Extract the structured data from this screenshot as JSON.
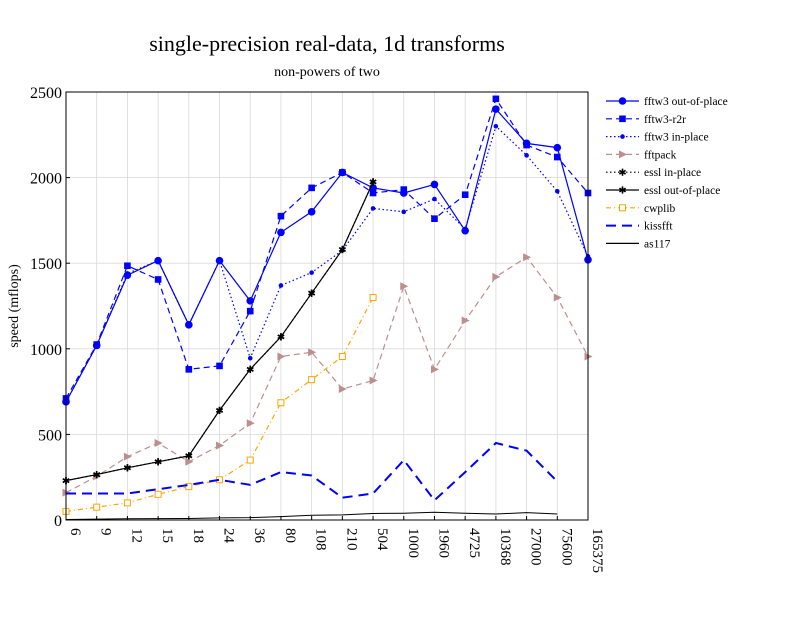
{
  "chart_data": {
    "type": "line",
    "title": "single-precision real-data, 1d transforms",
    "subtitle": "non-powers of two",
    "xlabel": "",
    "ylabel": "speed (mflops)",
    "ylim": [
      0,
      2500
    ],
    "yticks": [
      0,
      500,
      1000,
      1500,
      2000,
      2500
    ],
    "grid": true,
    "legend_position": "right",
    "categories": [
      "6",
      "9",
      "12",
      "15",
      "18",
      "24",
      "36",
      "80",
      "108",
      "210",
      "504",
      "1000",
      "1960",
      "4725",
      "10368",
      "27000",
      "75600",
      "165375"
    ],
    "series": [
      {
        "name": "fftw3 out-of-place",
        "color": "#0000ff",
        "dash": "solid",
        "marker": "circle",
        "values": [
          690,
          1020,
          1430,
          1515,
          1140,
          1515,
          1280,
          1680,
          1800,
          2030,
          1940,
          1910,
          1960,
          1690,
          2400,
          2200,
          2175,
          1520
        ]
      },
      {
        "name": "fftw3-r2r",
        "color": "#0000ff",
        "dash": "dashed",
        "marker": "square",
        "values": [
          710,
          1025,
          1485,
          1405,
          880,
          900,
          1220,
          1775,
          1940,
          2030,
          1910,
          1930,
          1760,
          1900,
          2460,
          2190,
          2120,
          1910
        ]
      },
      {
        "name": "fftw3 in-place",
        "color": "#0000ff",
        "dash": "dotted",
        "marker": "dot",
        "values": [
          690,
          1020,
          1440,
          1515,
          1140,
          1515,
          945,
          1370,
          1445,
          1575,
          1820,
          1800,
          1875,
          1700,
          2300,
          2130,
          1920,
          1540
        ]
      },
      {
        "name": "fftpack",
        "color": "#bc8f8f",
        "dash": "dashed",
        "marker": "triangle",
        "values": [
          160,
          255,
          370,
          450,
          340,
          435,
          565,
          955,
          980,
          765,
          815,
          1365,
          880,
          1165,
          1420,
          1535,
          1300,
          955
        ]
      },
      {
        "name": "essl in-place",
        "color": "#000000",
        "dash": "dotted",
        "marker": "star",
        "values": [
          230,
          265,
          305,
          340,
          375,
          640,
          880,
          1070,
          1325,
          1580,
          1975,
          null,
          null,
          null,
          null,
          null,
          null,
          null
        ]
      },
      {
        "name": "essl out-of-place",
        "color": "#000000",
        "dash": "solid",
        "marker": "star",
        "values": [
          230,
          265,
          305,
          340,
          375,
          640,
          880,
          1070,
          1325,
          1580,
          1975,
          null,
          null,
          null,
          null,
          null,
          null,
          null
        ]
      },
      {
        "name": "cwplib",
        "color": "#ffa500",
        "dash": "dashdot",
        "marker": "opensquare",
        "values": [
          50,
          75,
          100,
          150,
          195,
          235,
          350,
          685,
          820,
          955,
          1300,
          null,
          null,
          null,
          null,
          null,
          null,
          null
        ]
      },
      {
        "name": "kissfft",
        "color": "#0000ff",
        "dash": "longdash",
        "marker": "none",
        "values": [
          155,
          155,
          155,
          180,
          205,
          235,
          205,
          280,
          260,
          130,
          155,
          350,
          115,
          280,
          450,
          405,
          225,
          null
        ]
      },
      {
        "name": "as117",
        "color": "#000000",
        "dash": "solid",
        "marker": "none",
        "values": [
          3,
          5,
          7,
          8,
          9,
          12,
          14,
          20,
          28,
          30,
          38,
          40,
          45,
          40,
          35,
          43,
          35,
          null
        ]
      }
    ]
  }
}
